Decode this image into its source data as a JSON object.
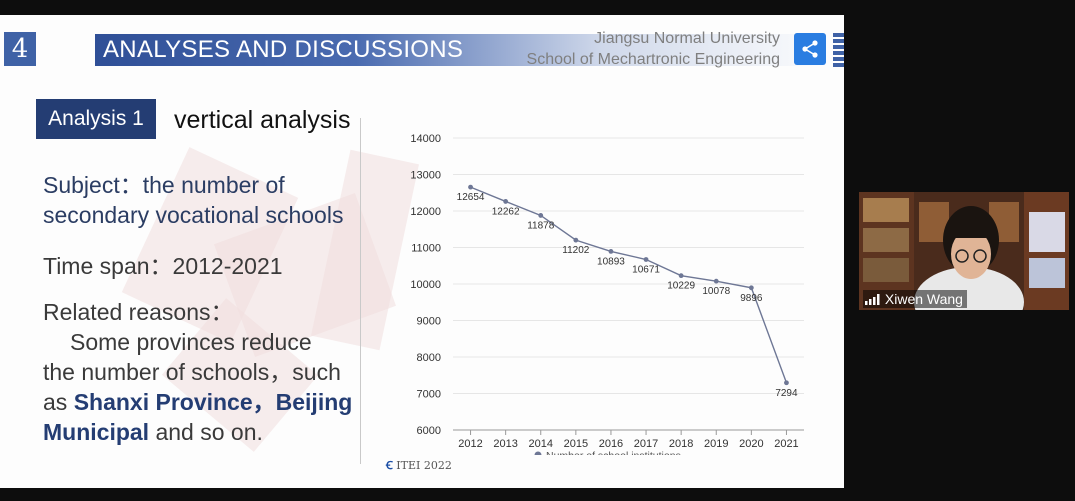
{
  "slide": {
    "number": "4",
    "title": "ANALYSES AND DISCUSSIONS",
    "university_line1": "Jiangsu Normal University",
    "university_line2": "School of Mechartronic Engineering",
    "analysis_label": "Analysis 1",
    "analysis_title": "vertical analysis",
    "subject_label": "Subject：",
    "subject_text_1": "the number of",
    "subject_text_2": "secondary vocational schools",
    "time_span_label": "Time span：",
    "time_span_value": "2012-2021",
    "reasons_label": "Related reasons：",
    "reasons_line1": "Some provinces reduce",
    "reasons_line2": "the number of schools，such",
    "reasons_as": "as ",
    "reasons_bold1": "Shanxi Province，Beijing",
    "reasons_bold2": "Municipal",
    "reasons_end": " and so on.",
    "footer_logo": "ITEI 2022"
  },
  "chart_data": {
    "type": "line",
    "x": [
      "2012",
      "2013",
      "2014",
      "2015",
      "2016",
      "2017",
      "2018",
      "2019",
      "2020",
      "2021"
    ],
    "series": [
      {
        "name": "Number of school institutions",
        "values": [
          12654,
          12262,
          11878,
          11202,
          10893,
          10671,
          10229,
          10078,
          9896,
          7294
        ]
      }
    ],
    "ylim": [
      6000,
      14000
    ],
    "yticks": [
      6000,
      7000,
      8000,
      9000,
      10000,
      11000,
      12000,
      13000,
      14000
    ],
    "grid": true,
    "legend_position": "bottom",
    "colors": {
      "line": "#6e7795",
      "grid": "#e6e6e6",
      "text": "#333333"
    }
  },
  "video": {
    "participant_name": "Xiwen Wang",
    "signal_icon": "signal-icon"
  },
  "colors": {
    "title_bar": "#2f4f97",
    "analysis_box": "#243d73",
    "share_button": "#2a7de1"
  }
}
